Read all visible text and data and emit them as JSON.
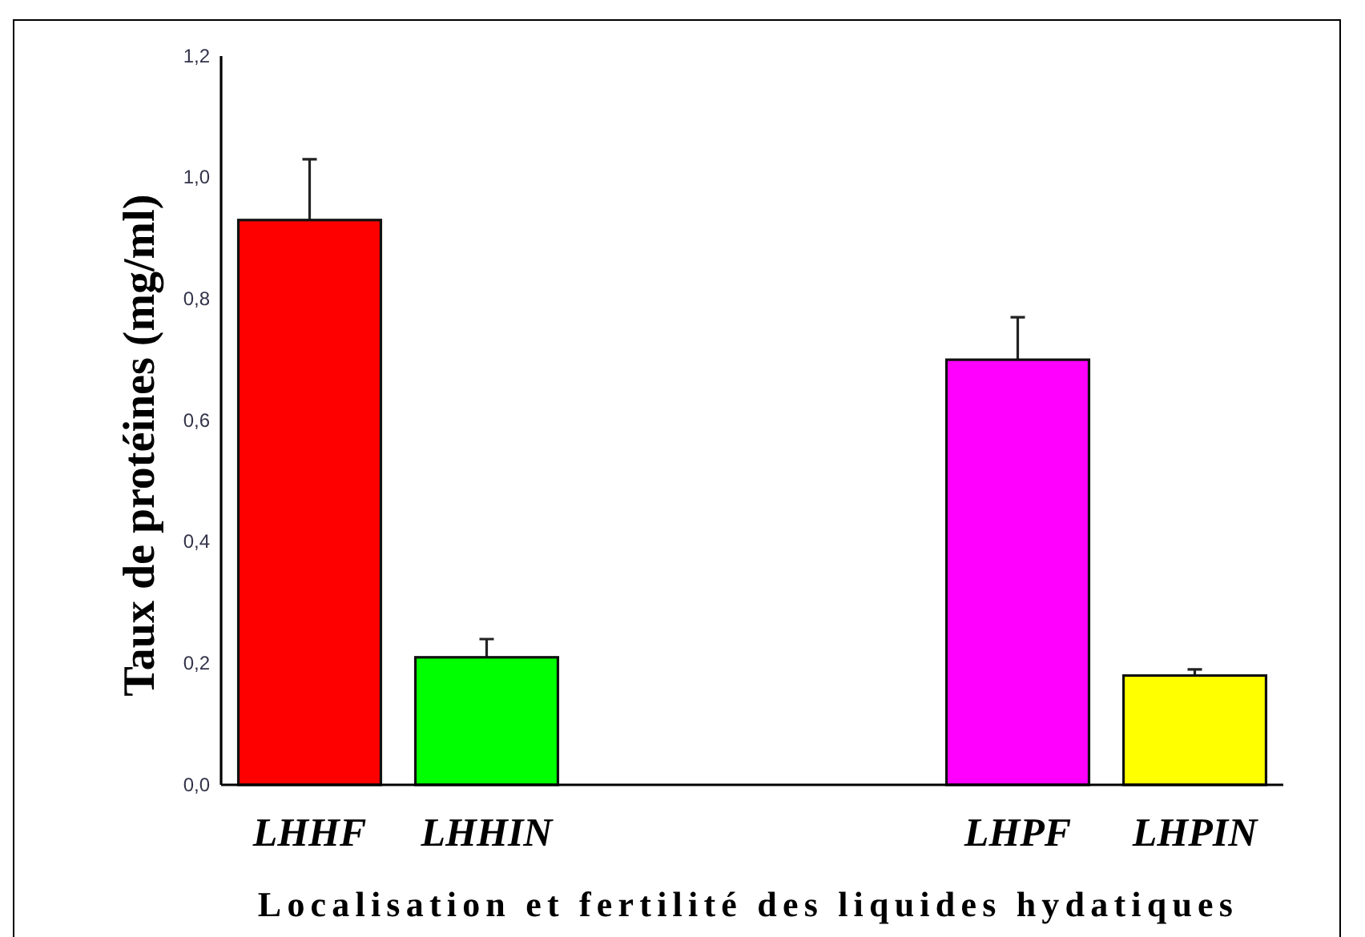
{
  "chart_data": {
    "type": "bar",
    "xlabel": "Localisation et fertilité des liquides hydatiques",
    "ylabel": "Taux de protéines (mg/ml)",
    "categories": [
      "LHHF",
      "LHHIN",
      null,
      null,
      "LHPF",
      "LHPIN"
    ],
    "values": [
      0.93,
      0.21,
      null,
      null,
      0.7,
      0.18
    ],
    "colors": [
      "#ff0000",
      "#00ff00",
      null,
      null,
      "#ff00ff",
      "#ffff00"
    ],
    "errors": [
      0.1,
      0.03,
      null,
      null,
      0.07,
      0.01
    ],
    "ylim": [
      0,
      1.2
    ],
    "yticks": [
      {
        "value": 0,
        "label": "0,0"
      },
      {
        "value": 0.2,
        "label": "0,2"
      },
      {
        "value": 0.4,
        "label": "0,4"
      },
      {
        "value": 0.6,
        "label": "0,6"
      },
      {
        "value": 0.8,
        "label": "0,8"
      },
      {
        "value": 1.0,
        "label": "1,0"
      },
      {
        "value": 1.2,
        "label": "1,2"
      }
    ]
  }
}
